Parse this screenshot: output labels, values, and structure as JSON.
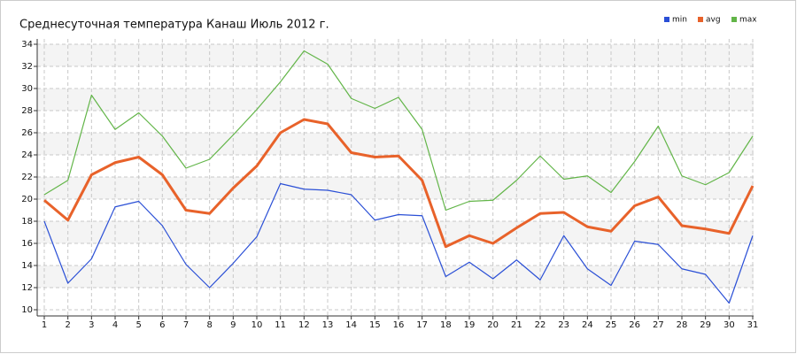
{
  "chart_data": {
    "type": "line",
    "title": "Среднесуточная температура Канаш  Июль 2012 г.",
    "x": [
      1,
      2,
      3,
      4,
      5,
      6,
      7,
      8,
      9,
      10,
      11,
      12,
      13,
      14,
      15,
      16,
      17,
      18,
      19,
      20,
      21,
      22,
      23,
      24,
      25,
      26,
      27,
      28,
      29,
      30,
      31
    ],
    "xlim": [
      1,
      31
    ],
    "xticks": [
      1,
      2,
      3,
      4,
      5,
      6,
      7,
      8,
      9,
      10,
      11,
      12,
      13,
      14,
      15,
      16,
      17,
      18,
      19,
      20,
      21,
      22,
      23,
      24,
      25,
      26,
      27,
      28,
      29,
      30,
      31
    ],
    "ylim": [
      10,
      34
    ],
    "yticks": [
      10,
      12,
      14,
      16,
      18,
      20,
      22,
      24,
      26,
      28,
      30,
      32,
      34
    ],
    "grid": true,
    "legend": "top-right",
    "series": [
      {
        "name": "min",
        "color": "#2a4fd6",
        "values": [
          18.0,
          12.4,
          14.6,
          19.3,
          19.8,
          17.6,
          14.1,
          12.0,
          14.2,
          16.6,
          21.4,
          20.9,
          20.8,
          20.4,
          18.1,
          18.6,
          18.5,
          13.0,
          14.3,
          12.8,
          14.5,
          12.7,
          16.7,
          13.7,
          12.2,
          16.2,
          15.9,
          13.7,
          13.2,
          10.6,
          16.7
        ]
      },
      {
        "name": "avg",
        "color": "#e8622a",
        "values": [
          19.9,
          18.1,
          22.2,
          23.3,
          23.8,
          22.2,
          19.0,
          18.7,
          21.0,
          23.0,
          26.0,
          27.2,
          26.8,
          24.2,
          23.8,
          23.9,
          21.7,
          15.7,
          16.7,
          16.0,
          17.4,
          18.7,
          18.8,
          17.5,
          17.1,
          19.4,
          20.2,
          17.6,
          17.3,
          16.9,
          21.2
        ]
      },
      {
        "name": "max",
        "color": "#62b548",
        "values": [
          20.4,
          21.7,
          29.4,
          26.3,
          27.8,
          25.7,
          22.8,
          23.6,
          25.8,
          28.1,
          30.6,
          33.4,
          32.2,
          29.1,
          28.2,
          29.2,
          26.3,
          19.0,
          19.8,
          19.9,
          21.7,
          23.9,
          21.8,
          22.1,
          20.6,
          23.4,
          26.6,
          22.1,
          21.3,
          22.4,
          25.7
        ]
      }
    ]
  }
}
